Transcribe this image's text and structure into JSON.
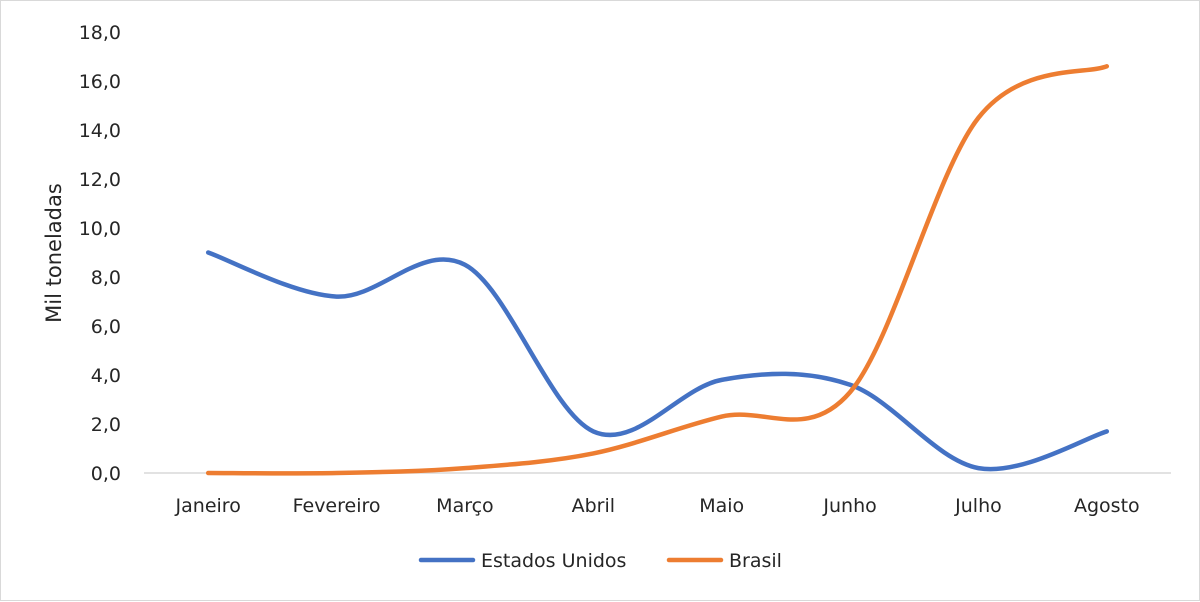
{
  "chart_data": {
    "type": "line",
    "title": "",
    "xlabel": "",
    "ylabel": "Mil toneladas",
    "categories": [
      "Janeiro",
      "Fevereiro",
      "Março",
      "Abril",
      "Maio",
      "Junho",
      "Julho",
      "Agosto"
    ],
    "y_ticks": [
      "0,0",
      "2,0",
      "4,0",
      "6,0",
      "8,0",
      "10,0",
      "12,0",
      "14,0",
      "16,0",
      "18,0"
    ],
    "ylim": [
      0,
      18
    ],
    "grid": false,
    "legend_position": "bottom",
    "smooth": true,
    "series": [
      {
        "name": "Estados Unidos",
        "color": "#4472C4",
        "values": [
          9.0,
          7.2,
          8.5,
          1.7,
          3.8,
          3.6,
          0.2,
          1.7
        ]
      },
      {
        "name": "Brasil",
        "color": "#ED7D31",
        "values": [
          0.0,
          0.0,
          0.2,
          0.8,
          2.3,
          3.3,
          14.5,
          16.6
        ]
      }
    ]
  }
}
